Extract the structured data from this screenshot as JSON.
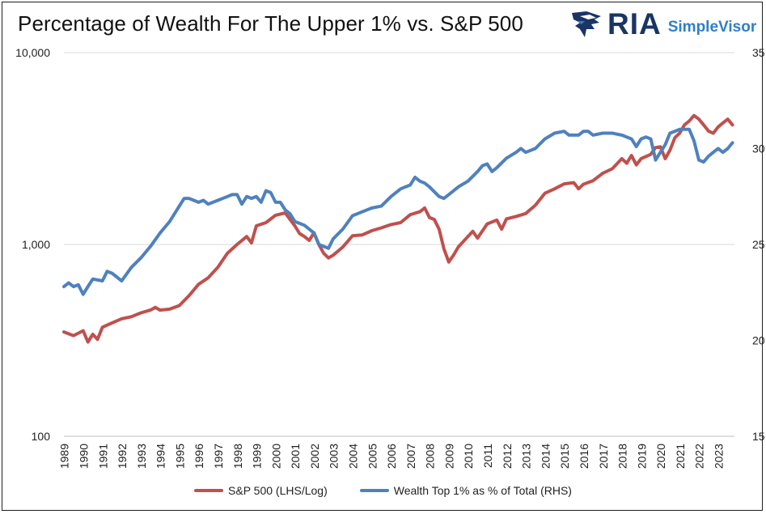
{
  "header": {
    "title": "Percentage of Wealth For The Upper 1% vs. S&P 500",
    "logo_main": "RIA",
    "logo_sub": "SimpleVisor"
  },
  "chart_data": {
    "type": "line",
    "title": "Percentage of Wealth For The Upper 1% vs. S&P 500",
    "x_ticks": [
      "1989",
      "1990",
      "1991",
      "1992",
      "1993",
      "1994",
      "1995",
      "1996",
      "1997",
      "1998",
      "1999",
      "2000",
      "2001",
      "2002",
      "2003",
      "2004",
      "2005",
      "2006",
      "2007",
      "2008",
      "2009",
      "2010",
      "2011",
      "2012",
      "2013",
      "2014",
      "2015",
      "2016",
      "2017",
      "2018",
      "2019",
      "2020",
      "2021",
      "2022",
      "2023"
    ],
    "y_left": {
      "scale": "log",
      "range": [
        100,
        10000
      ],
      "tick_labels": [
        "100",
        "1,000",
        "10,000"
      ],
      "ticks": [
        100,
        1000,
        10000
      ]
    },
    "y_right": {
      "range": [
        15,
        35
      ],
      "ticks": [
        15,
        20,
        25,
        30,
        35
      ]
    },
    "grid": "horizontal",
    "legend_position": "bottom",
    "series": [
      {
        "name": "S&P 500 (LHS/Log)",
        "axis": "left",
        "color": "#c0504d",
        "points": [
          [
            1989.0,
            350
          ],
          [
            1989.5,
            335
          ],
          [
            1990.0,
            355
          ],
          [
            1990.25,
            310
          ],
          [
            1990.5,
            340
          ],
          [
            1990.75,
            320
          ],
          [
            1991.0,
            370
          ],
          [
            1991.5,
            390
          ],
          [
            1992.0,
            410
          ],
          [
            1992.5,
            420
          ],
          [
            1993.0,
            440
          ],
          [
            1993.5,
            455
          ],
          [
            1993.75,
            470
          ],
          [
            1994.0,
            455
          ],
          [
            1994.5,
            460
          ],
          [
            1995.0,
            480
          ],
          [
            1995.5,
            540
          ],
          [
            1996.0,
            620
          ],
          [
            1996.5,
            670
          ],
          [
            1997.0,
            760
          ],
          [
            1997.5,
            900
          ],
          [
            1998.0,
            1000
          ],
          [
            1998.5,
            1100
          ],
          [
            1998.75,
            1020
          ],
          [
            1999.0,
            1250
          ],
          [
            1999.5,
            1300
          ],
          [
            2000.0,
            1420
          ],
          [
            2000.5,
            1460
          ],
          [
            2001.0,
            1250
          ],
          [
            2001.25,
            1140
          ],
          [
            2001.5,
            1100
          ],
          [
            2001.75,
            1050
          ],
          [
            2002.0,
            1150
          ],
          [
            2002.25,
            1000
          ],
          [
            2002.5,
            900
          ],
          [
            2002.75,
            850
          ],
          [
            2003.0,
            880
          ],
          [
            2003.5,
            970
          ],
          [
            2004.0,
            1110
          ],
          [
            2004.5,
            1120
          ],
          [
            2005.0,
            1180
          ],
          [
            2005.5,
            1220
          ],
          [
            2006.0,
            1270
          ],
          [
            2006.5,
            1300
          ],
          [
            2007.0,
            1430
          ],
          [
            2007.5,
            1480
          ],
          [
            2007.75,
            1550
          ],
          [
            2008.0,
            1380
          ],
          [
            2008.25,
            1350
          ],
          [
            2008.5,
            1200
          ],
          [
            2008.75,
            950
          ],
          [
            2009.0,
            810
          ],
          [
            2009.25,
            880
          ],
          [
            2009.5,
            970
          ],
          [
            2010.0,
            1100
          ],
          [
            2010.25,
            1170
          ],
          [
            2010.5,
            1080
          ],
          [
            2011.0,
            1280
          ],
          [
            2011.5,
            1340
          ],
          [
            2011.75,
            1200
          ],
          [
            2012.0,
            1360
          ],
          [
            2012.5,
            1400
          ],
          [
            2013.0,
            1450
          ],
          [
            2013.5,
            1600
          ],
          [
            2014.0,
            1850
          ],
          [
            2014.5,
            1950
          ],
          [
            2015.0,
            2070
          ],
          [
            2015.5,
            2100
          ],
          [
            2015.75,
            1950
          ],
          [
            2016.0,
            2060
          ],
          [
            2016.5,
            2150
          ],
          [
            2017.0,
            2350
          ],
          [
            2017.5,
            2480
          ],
          [
            2018.0,
            2800
          ],
          [
            2018.25,
            2650
          ],
          [
            2018.5,
            2910
          ],
          [
            2018.75,
            2600
          ],
          [
            2019.0,
            2800
          ],
          [
            2019.5,
            2950
          ],
          [
            2019.75,
            3200
          ],
          [
            2020.0,
            3230
          ],
          [
            2020.25,
            2800
          ],
          [
            2020.5,
            3100
          ],
          [
            2020.75,
            3600
          ],
          [
            2021.0,
            3800
          ],
          [
            2021.25,
            4200
          ],
          [
            2021.5,
            4400
          ],
          [
            2021.75,
            4700
          ],
          [
            2022.0,
            4500
          ],
          [
            2022.25,
            4200
          ],
          [
            2022.5,
            3900
          ],
          [
            2022.75,
            3800
          ],
          [
            2023.0,
            4100
          ],
          [
            2023.25,
            4300
          ],
          [
            2023.5,
            4500
          ],
          [
            2023.75,
            4200
          ]
        ]
      },
      {
        "name": "Wealth Top 1% as % of Total (RHS)",
        "axis": "right",
        "color": "#4f81bd",
        "points": [
          [
            1989.0,
            22.8
          ],
          [
            1989.25,
            23.0
          ],
          [
            1989.5,
            22.8
          ],
          [
            1989.75,
            22.9
          ],
          [
            1990.0,
            22.4
          ],
          [
            1990.25,
            22.8
          ],
          [
            1990.5,
            23.2
          ],
          [
            1991.0,
            23.1
          ],
          [
            1991.25,
            23.6
          ],
          [
            1991.5,
            23.5
          ],
          [
            1992.0,
            23.1
          ],
          [
            1992.5,
            23.8
          ],
          [
            1993.0,
            24.3
          ],
          [
            1993.5,
            24.9
          ],
          [
            1994.0,
            25.6
          ],
          [
            1994.5,
            26.2
          ],
          [
            1995.0,
            27.0
          ],
          [
            1995.25,
            27.4
          ],
          [
            1995.5,
            27.4
          ],
          [
            1995.75,
            27.3
          ],
          [
            1996.0,
            27.2
          ],
          [
            1996.25,
            27.3
          ],
          [
            1996.5,
            27.1
          ],
          [
            1997.0,
            27.3
          ],
          [
            1997.5,
            27.5
          ],
          [
            1997.75,
            27.6
          ],
          [
            1998.0,
            27.6
          ],
          [
            1998.25,
            27.1
          ],
          [
            1998.5,
            27.5
          ],
          [
            1998.75,
            27.4
          ],
          [
            1999.0,
            27.5
          ],
          [
            1999.25,
            27.2
          ],
          [
            1999.5,
            27.8
          ],
          [
            1999.75,
            27.7
          ],
          [
            2000.0,
            27.2
          ],
          [
            2000.25,
            27.2
          ],
          [
            2000.5,
            26.8
          ],
          [
            2000.75,
            26.6
          ],
          [
            2001.0,
            26.2
          ],
          [
            2001.5,
            26.0
          ],
          [
            2002.0,
            25.6
          ],
          [
            2002.25,
            25.0
          ],
          [
            2002.5,
            24.9
          ],
          [
            2002.75,
            24.8
          ],
          [
            2003.0,
            25.3
          ],
          [
            2003.5,
            25.8
          ],
          [
            2004.0,
            26.5
          ],
          [
            2004.5,
            26.7
          ],
          [
            2005.0,
            26.9
          ],
          [
            2005.5,
            27.0
          ],
          [
            2006.0,
            27.5
          ],
          [
            2006.5,
            27.9
          ],
          [
            2007.0,
            28.1
          ],
          [
            2007.25,
            28.5
          ],
          [
            2007.5,
            28.3
          ],
          [
            2007.75,
            28.2
          ],
          [
            2008.0,
            28.0
          ],
          [
            2008.5,
            27.5
          ],
          [
            2008.75,
            27.4
          ],
          [
            2009.0,
            27.6
          ],
          [
            2009.5,
            28.0
          ],
          [
            2010.0,
            28.3
          ],
          [
            2010.5,
            28.8
          ],
          [
            2010.75,
            29.1
          ],
          [
            2011.0,
            29.2
          ],
          [
            2011.25,
            28.8
          ],
          [
            2011.5,
            29.0
          ],
          [
            2012.0,
            29.5
          ],
          [
            2012.5,
            29.8
          ],
          [
            2012.75,
            30.0
          ],
          [
            2013.0,
            29.8
          ],
          [
            2013.5,
            30.0
          ],
          [
            2014.0,
            30.5
          ],
          [
            2014.5,
            30.8
          ],
          [
            2015.0,
            30.9
          ],
          [
            2015.25,
            30.7
          ],
          [
            2015.75,
            30.7
          ],
          [
            2016.0,
            30.9
          ],
          [
            2016.25,
            30.9
          ],
          [
            2016.5,
            30.7
          ],
          [
            2017.0,
            30.8
          ],
          [
            2017.5,
            30.8
          ],
          [
            2018.0,
            30.7
          ],
          [
            2018.25,
            30.6
          ],
          [
            2018.5,
            30.5
          ],
          [
            2018.75,
            30.1
          ],
          [
            2019.0,
            30.5
          ],
          [
            2019.25,
            30.6
          ],
          [
            2019.5,
            30.5
          ],
          [
            2019.75,
            29.4
          ],
          [
            2020.0,
            29.8
          ],
          [
            2020.25,
            30.2
          ],
          [
            2020.5,
            30.8
          ],
          [
            2020.75,
            30.9
          ],
          [
            2021.0,
            31.0
          ],
          [
            2021.25,
            31.0
          ],
          [
            2021.5,
            31.0
          ],
          [
            2021.75,
            30.4
          ],
          [
            2022.0,
            29.4
          ],
          [
            2022.25,
            29.3
          ],
          [
            2022.5,
            29.6
          ],
          [
            2022.75,
            29.8
          ],
          [
            2023.0,
            30.0
          ],
          [
            2023.25,
            29.8
          ],
          [
            2023.5,
            30.0
          ],
          [
            2023.75,
            30.3
          ]
        ]
      }
    ]
  }
}
